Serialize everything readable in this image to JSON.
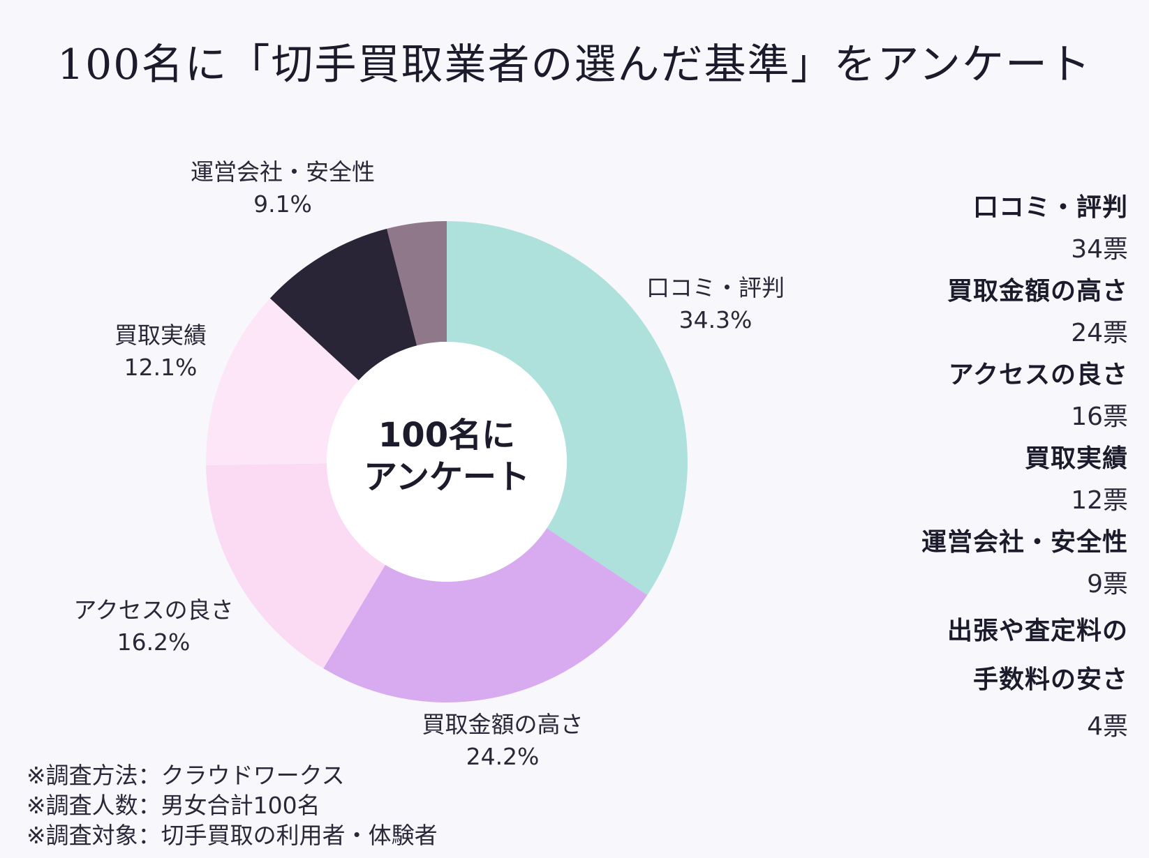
{
  "title": "100名に「切手買取業者の選んだ基準」をアンケート",
  "center_text": [
    "100名に",
    "アンケート"
  ],
  "colors": {
    "口コミ・評判": "#aee1dc",
    "買取金額の高さ": "#d8aaf0",
    "アクセスの良さ": "#fbdaf3",
    "買取実績": "#fde6f8",
    "運営会社・安全性": "#2a2437",
    "出張や査定料の手数料の安さ": "#8f7889"
  },
  "chart_data": {
    "type": "pie",
    "donut": true,
    "title": "100名に「切手買取業者の選んだ基準」をアンケート",
    "slices": [
      {
        "label": "口コミ・評判",
        "percent": 34.3,
        "percent_label": "34.3%",
        "votes": 34,
        "votes_label": "34票"
      },
      {
        "label": "買取金額の高さ",
        "percent": 24.2,
        "percent_label": "24.2%",
        "votes": 24,
        "votes_label": "24票"
      },
      {
        "label": "アクセスの良さ",
        "percent": 16.2,
        "percent_label": "16.2%",
        "votes": 16,
        "votes_label": "16票"
      },
      {
        "label": "買取実績",
        "percent": 12.1,
        "percent_label": "12.1%",
        "votes": 12,
        "votes_label": "12票"
      },
      {
        "label": "運営会社・安全性",
        "percent": 9.1,
        "percent_label": "9.1%",
        "votes": 9,
        "votes_label": "9票"
      },
      {
        "label": "出張や査定料の手数料の安さ",
        "percent": 4.0,
        "percent_label": "",
        "votes": 4,
        "votes_label": "4票"
      }
    ]
  },
  "legend": [
    {
      "name_lines": [
        "口コミ・評判"
      ],
      "votes": "34票"
    },
    {
      "name_lines": [
        "買取金額の高さ"
      ],
      "votes": "24票"
    },
    {
      "name_lines": [
        "アクセスの良さ"
      ],
      "votes": "16票"
    },
    {
      "name_lines": [
        "買取実績"
      ],
      "votes": "12票"
    },
    {
      "name_lines": [
        "運営会社・安全性"
      ],
      "votes": "9票"
    },
    {
      "name_lines": [
        "出張や査定料の",
        "手数料の安さ"
      ],
      "votes": "4票"
    }
  ],
  "notes": [
    "※調査方法：クラウドワークス",
    "※調査人数：男女合計100名",
    "※調査対象：切手買取の利用者・体験者"
  ]
}
